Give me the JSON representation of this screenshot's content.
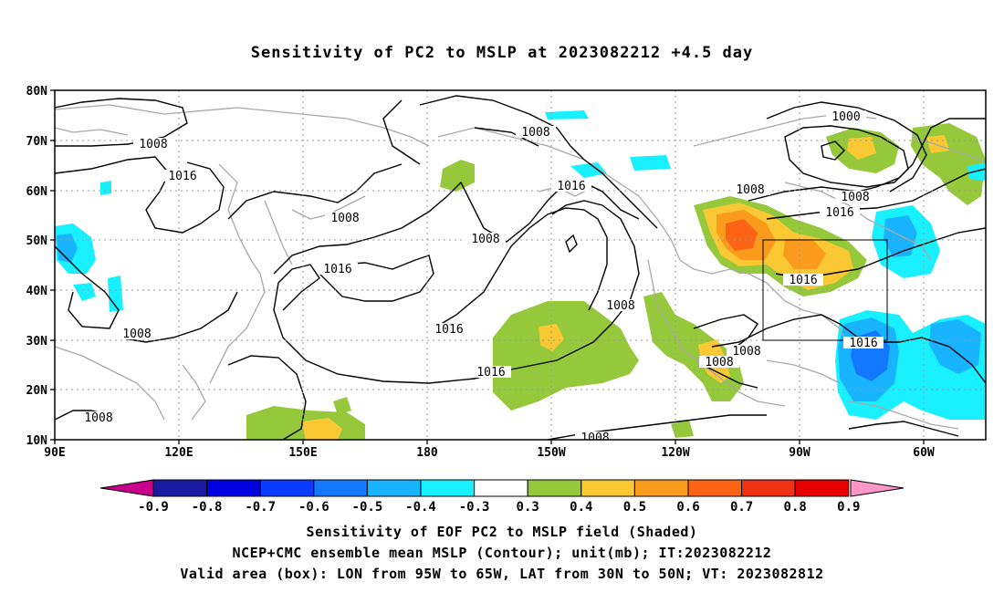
{
  "title": "Sensitivity of PC2 to MSLP at 2023082212 +4.5 day",
  "map": {
    "lat_labels": [
      "80N",
      "70N",
      "60N",
      "50N",
      "40N",
      "30N",
      "20N",
      "10N"
    ],
    "lon_labels": [
      "90E",
      "120E",
      "150E",
      "180",
      "150W",
      "120W",
      "90W",
      "60W"
    ],
    "lat_range": [
      10,
      80
    ],
    "lon_range_deg_east": [
      90,
      315
    ],
    "grid": true,
    "valid_box": {
      "lon": [
        "95W",
        "65W"
      ],
      "lat": [
        "30N",
        "50N"
      ]
    },
    "contour_labels": [
      "1008",
      "1008",
      "1016",
      "1008",
      "1008",
      "1016",
      "1016",
      "1016",
      "1008",
      "1016",
      "1000",
      "1008",
      "1008",
      "1016",
      "1016",
      "1008",
      "1008",
      "1008",
      "1016",
      "1008",
      "1008"
    ]
  },
  "colorbar": {
    "labels": [
      "-0.9",
      "-0.8",
      "-0.7",
      "-0.6",
      "-0.5",
      "-0.4",
      "-0.3",
      "0.3",
      "0.4",
      "0.5",
      "0.6",
      "0.7",
      "0.8",
      "0.9"
    ],
    "colors": [
      "#1a1aa0",
      "#0000e0",
      "#0a3cff",
      "#1478ff",
      "#19b4ff",
      "#19f0ff",
      "#ffffff",
      "#96c83c",
      "#fac832",
      "#fa9b1e",
      "#fa6414",
      "#f03214",
      "#e60000"
    ],
    "low_end_color": "#c8008c",
    "high_end_color": "#ff96c8"
  },
  "footer": {
    "line1": "Sensitivity of EOF PC2 to MSLP field (Shaded)",
    "line2": "NCEP+CMC ensemble mean MSLP (Contour); unit(mb); IT:2023082212",
    "line3": "Valid area (box): LON from 95W to 65W, LAT from 30N to 50N; VT: 2023082812"
  }
}
